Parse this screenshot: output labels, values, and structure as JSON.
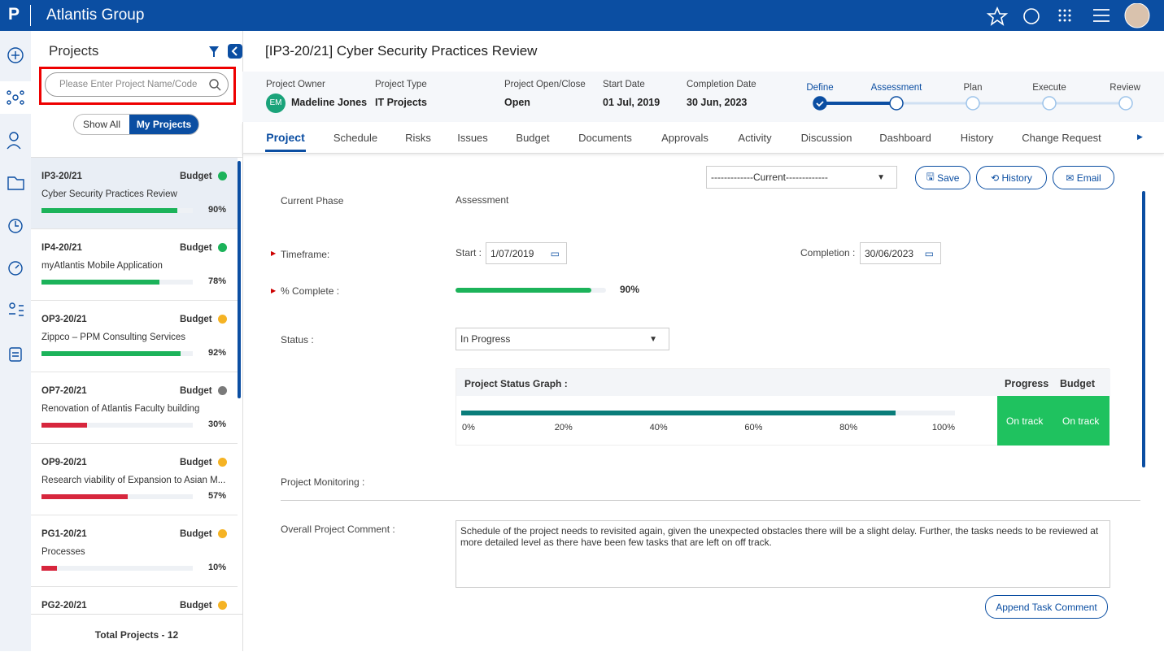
{
  "header": {
    "logo": "P",
    "app_name": "Atlantis Group"
  },
  "sidebar": {
    "title": "Projects",
    "search_placeholder": "Please Enter Project Name/Code",
    "toggle": [
      "Show All",
      "My Projects"
    ],
    "projects": [
      {
        "code": "IP3-20/21",
        "budget_label": "Budget",
        "status_color": "#1cb35a",
        "name": "Cyber Security Practices Review",
        "progress": 90,
        "progress_label": "90%",
        "bar_color": "#1cb35a"
      },
      {
        "code": "IP4-20/21",
        "budget_label": "Budget",
        "status_color": "#1cb35a",
        "name": "myAtlantis Mobile Application",
        "progress": 78,
        "progress_label": "78%",
        "bar_color": "#1cb35a"
      },
      {
        "code": "OP3-20/21",
        "budget_label": "Budget",
        "status_color": "#f5b324",
        "name": "Zippco – PPM Consulting Services",
        "progress": 92,
        "progress_label": "92%",
        "bar_color": "#1cb35a"
      },
      {
        "code": "OP7-20/21",
        "budget_label": "Budget",
        "status_color": "#7a7a7a",
        "name": "Renovation of Atlantis Faculty building",
        "progress": 30,
        "progress_label": "30%",
        "bar_color": "#d7263d"
      },
      {
        "code": "OP9-20/21",
        "budget_label": "Budget",
        "status_color": "#f5b324",
        "name": "Research viability of Expansion to Asian M...",
        "progress": 57,
        "progress_label": "57%",
        "bar_color": "#d7263d"
      },
      {
        "code": "PG1-20/21",
        "budget_label": "Budget",
        "status_color": "#f5b324",
        "name": "Processes",
        "progress": 10,
        "progress_label": "10%",
        "bar_color": "#d7263d"
      },
      {
        "code": "PG2-20/21",
        "budget_label": "Budget",
        "status_color": "#f5b324",
        "name": "",
        "progress": null,
        "progress_label": null,
        "bar_color": null
      }
    ],
    "total": "Total Projects - 12"
  },
  "main": {
    "title": "[IP3-20/21] Cyber Security Practices Review",
    "info": [
      {
        "label": "Project Owner",
        "value": "Madeline Jones",
        "avatar": "EM"
      },
      {
        "label": "Project Type",
        "value": "IT Projects"
      },
      {
        "label": "Project Open/Close",
        "value": "Open"
      },
      {
        "label": "Start Date",
        "value": "01 Jul, 2019"
      },
      {
        "label": "Completion Date",
        "value": "30 Jun, 2023"
      }
    ],
    "phases": [
      "Define",
      "Assessment",
      "Plan",
      "Execute",
      "Review"
    ],
    "current_phase_index": 1,
    "tabs": [
      "Project",
      "Schedule",
      "Risks",
      "Issues",
      "Budget",
      "Documents",
      "Approvals",
      "Activity",
      "Discussion",
      "Dashboard",
      "History",
      "Change Request"
    ],
    "form": {
      "period": "-------------Current-------------",
      "buttons": [
        "Save",
        "History",
        "Email"
      ],
      "current_phase_label": "Current Phase",
      "current_phase": "Assessment",
      "timeframe_label": "Timeframe:",
      "start_label": "Start :",
      "start": "1/07/2019",
      "completion_label": "Completion :",
      "completion": "30/06/2023",
      "complete_label": "% Complete :",
      "complete": 90,
      "complete_label_value": "90%",
      "status_label": "Status :",
      "status": "In Progress",
      "status_graph": {
        "title": "Project Status Graph :",
        "value": 88,
        "xlim": [
          0,
          100
        ],
        "xticks": [
          {
            "value": 0,
            "label": "0%"
          },
          {
            "value": 20,
            "label": "20%"
          },
          {
            "value": 40,
            "label": "40%"
          },
          {
            "value": 60,
            "label": "60%"
          },
          {
            "value": 80,
            "label": "80%"
          },
          {
            "value": 100,
            "label": "100%"
          }
        ],
        "progress_header": "Progress",
        "budget_header": "Budget",
        "progress_status": "On track",
        "budget_status": "On track"
      },
      "monitoring_label": "Project Monitoring :",
      "comment_label": "Overall Project Comment :",
      "comment": "Schedule of the project needs to revisited again, given the unexpected obstacles there will be a slight delay. Further, the tasks needs to be reviewed at more detailed level as there have been few tasks that are left on off track.",
      "append_button": "Append Task Comment"
    }
  }
}
